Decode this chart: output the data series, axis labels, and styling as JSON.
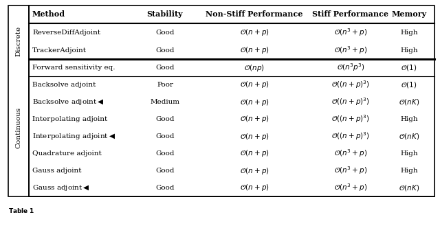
{
  "header": [
    "Method",
    "Stability",
    "Non-Stiff Performance",
    "Stiff Performance",
    "Memory"
  ],
  "discrete_rows": [
    [
      "ReverseDiffAdjoint",
      "Good",
      "$\\mathcal{O}(n+p)$",
      "$\\mathcal{O}(n^3+p)$",
      "High"
    ],
    [
      "TrackerAdjoint",
      "Good",
      "$\\mathcal{O}(n+p)$",
      "$\\mathcal{O}(n^3+p)$",
      "High"
    ]
  ],
  "continuous_rows": [
    [
      "Forward sensitivity eq.",
      "Good",
      "$\\mathcal{O}(np)$",
      "$\\mathcal{O}(n^3p^3)$",
      "$\\mathcal{O}(1)$"
    ],
    [
      "Backsolve adjoint",
      "Poor",
      "$\\mathcal{O}(n+p)$",
      "$\\mathcal{O}((n+p)^3)$",
      "$\\mathcal{O}(1)$"
    ],
    [
      "Backsolve adjoint$\\blacktriangleleft$",
      "Medium",
      "$\\mathcal{O}(n+p)$",
      "$\\mathcal{O}((n+p)^3)$",
      "$\\mathcal{O}(nK)$"
    ],
    [
      "Interpolating adjoint",
      "Good",
      "$\\mathcal{O}(n+p)$",
      "$\\mathcal{O}((n+p)^3)$",
      "High"
    ],
    [
      "Interpolating adjoint$\\blacktriangleleft$",
      "Good",
      "$\\mathcal{O}(n+p)$",
      "$\\mathcal{O}((n+p)^3)$",
      "$\\mathcal{O}(nK)$"
    ],
    [
      "Quadrature adjoint",
      "Good",
      "$\\mathcal{O}(n+p)$",
      "$\\mathcal{O}(n^3+p)$",
      "High"
    ],
    [
      "Gauss adjoint",
      "Good",
      "$\\mathcal{O}(n+p)$",
      "$\\mathcal{O}(n^3+p)$",
      "High"
    ],
    [
      "Gauss adjoint$\\blacktriangleleft$",
      "Good",
      "$\\mathcal{O}(n+p)$",
      "$\\mathcal{O}(n^3+p)$",
      "$\\mathcal{O}(nK)$"
    ]
  ],
  "bg_color": "#ffffff"
}
